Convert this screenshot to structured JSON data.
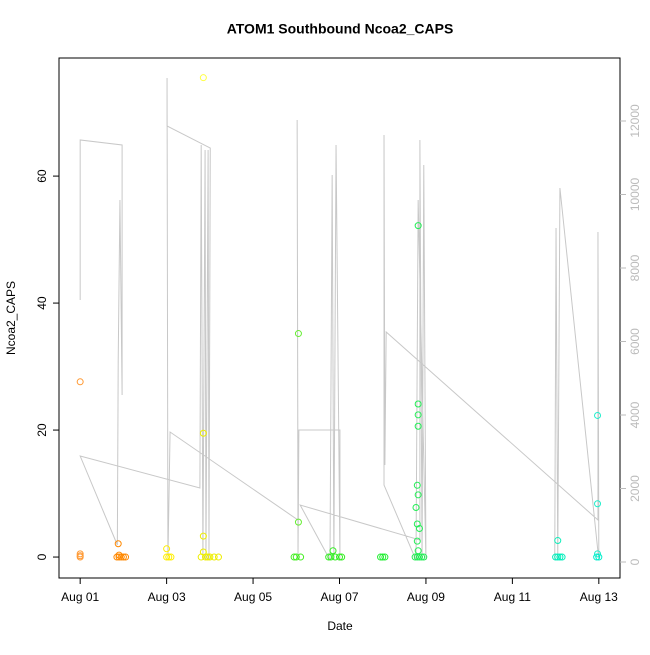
{
  "chart_data": {
    "type": "scatter",
    "title": "ATOM1 Southbound Ncoa2_CAPS",
    "x_label": "Date",
    "y_label": "Ncoa2_CAPS",
    "xlim": [
      -0.49,
      12.49
    ],
    "ylim": [
      -3.3,
      78.6
    ],
    "y2lim": [
      -435,
      13714
    ],
    "xticks": [
      {
        "value": 0,
        "label": "Aug 01"
      },
      {
        "value": 2,
        "label": "Aug 03"
      },
      {
        "value": 4,
        "label": "Aug 05"
      },
      {
        "value": 6,
        "label": "Aug 07"
      },
      {
        "value": 8,
        "label": "Aug 09"
      },
      {
        "value": 10,
        "label": "Aug 11"
      },
      {
        "value": 12,
        "label": "Aug 13"
      }
    ],
    "yticks": [
      0,
      20,
      40,
      60
    ],
    "y2ticks": [
      0,
      2000,
      4000,
      6000,
      8000,
      10000,
      12000
    ],
    "x": [
      0,
      0,
      0,
      0,
      0.88,
      0.9,
      0.85,
      0.9,
      0.95,
      1.0,
      1.05,
      2.0,
      2.0,
      2.05,
      2.1,
      2.85,
      2.85,
      2.85,
      2.85,
      2.9,
      2.95,
      3.0,
      3.1,
      3.2,
      2.8,
      5.05,
      5.05,
      5.0,
      5.1,
      4.95,
      5.85,
      5.8,
      5.9,
      6.0,
      5.75,
      6.05,
      6.95,
      7.0,
      7.05,
      7.82,
      7.82,
      7.82,
      7.82,
      7.8,
      7.82,
      7.77,
      7.8,
      7.85,
      7.8,
      7.82,
      7.75,
      7.8,
      7.85,
      7.9,
      7.95,
      11.05,
      11.0,
      11.05,
      11.1,
      11.15,
      11.97,
      11.97,
      11.97,
      11.95,
      12.0
    ],
    "values": [
      27.6,
      0.5,
      0.2,
      0,
      2.1,
      0.3,
      0,
      0,
      0,
      0,
      0,
      1.3,
      0,
      0,
      0,
      75.5,
      19.5,
      3.3,
      0.8,
      0,
      0,
      0,
      0,
      0,
      0,
      35.2,
      5.5,
      0,
      0,
      0,
      1.0,
      0,
      0,
      0,
      0,
      0,
      0,
      0,
      0,
      52.2,
      24.1,
      22.4,
      20.6,
      11.3,
      9.8,
      7.8,
      5.2,
      4.5,
      2.5,
      1,
      0,
      0,
      0,
      0,
      0,
      2.6,
      0,
      0,
      0,
      0,
      22.3,
      8.4,
      0.5,
      0,
      0
    ],
    "colors": [
      "#ff9933",
      "#ff9933",
      "#ff9933",
      "#ff9933",
      "#ff8800",
      "#ff8800",
      "#ff8800",
      "#ff8800",
      "#ff8800",
      "#ff8800",
      "#ff8800",
      "#ffee00",
      "#ffee00",
      "#ffee00",
      "#ffee00",
      "#ffff44",
      "#eeee00",
      "#eeee00",
      "#eeee00",
      "#eeee00",
      "#eeee00",
      "#eeee00",
      "#eeee00",
      "#eeee00",
      "#eeee00",
      "#66ee33",
      "#66ee33",
      "#44ee22",
      "#44ee22",
      "#44ee22",
      "#33ee22",
      "#33ee22",
      "#33ee22",
      "#33ee22",
      "#33ee22",
      "#33ee22",
      "#22ee33",
      "#22ee33",
      "#22ee33",
      "#22ee55",
      "#22ee55",
      "#22ee55",
      "#22ee55",
      "#22ee55",
      "#22ee55",
      "#22ee55",
      "#22ee55",
      "#22ee55",
      "#22ee55",
      "#22ee55",
      "#22ee55",
      "#22ee55",
      "#22ee55",
      "#22ee55",
      "#22ee55",
      "#11eebb",
      "#00eebb",
      "#00eebb",
      "#00eebb",
      "#00eebb",
      "#22eecc",
      "#22eecc",
      "#22eecc",
      "#00eecc",
      "#00eecc"
    ],
    "line": {
      "axis": "y2",
      "color": "#c8c8c8",
      "x": [
        0,
        0,
        0.97,
        0.97,
        0.92,
        0.88,
        0.86,
        0,
        2.77,
        2.8,
        2.84,
        2.89,
        2.91,
        2.96,
        2.98,
        3.01,
        2.01,
        2.01,
        2.03,
        2.08,
        5.04,
        5.02,
        5.04,
        5.06,
        6.01,
        6.01,
        5.92,
        5.87,
        5.83,
        5.78,
        5.09,
        7.86,
        7.86,
        7.91,
        7.95,
        8.0,
        7.82,
        7.77,
        7.03,
        7.03,
        7.05,
        7.08,
        11.98,
        11.98,
        12.0,
        11.1,
        11.05,
        11.01,
        10.98
      ],
      "values": [
        7129,
        11483,
        11347,
        4544,
        9850,
        5497,
        463,
        2884,
        2014,
        11347,
        54,
        11211,
        54,
        11211,
        54,
        11265,
        11864,
        13170,
        54,
        3537,
        1143,
        12027,
        54,
        3592,
        3592,
        54,
        11347,
        54,
        10531,
        54,
        1551,
        599,
        11483,
        54,
        10803,
        54,
        9850,
        54,
        2095,
        11619,
        2639,
        6259,
        1143,
        8980,
        54,
        10177,
        54,
        9088,
        54
      ]
    }
  }
}
